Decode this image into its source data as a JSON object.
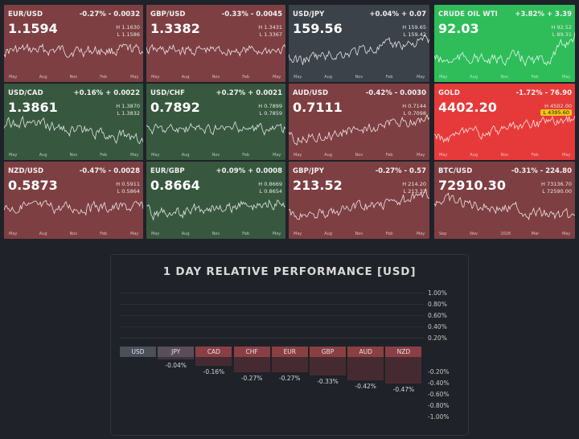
{
  "tiles": [
    {
      "symbol": "EUR/USD",
      "change": "-0.27% - 0.0032",
      "price": "1.1594",
      "high": "H 1.1630",
      "low": "L 1.1586",
      "badge": false,
      "color": "#7e3f42",
      "dir": "flat",
      "axis": [
        "May",
        "Aug",
        "Nov",
        "Feb",
        "May"
      ]
    },
    {
      "symbol": "GBP/USD",
      "change": "-0.33% - 0.0045",
      "price": "1.3382",
      "high": "H 1.3431",
      "low": "L 1.3367",
      "badge": false,
      "color": "#7e3f42",
      "dir": "flat",
      "axis": [
        "May",
        "Aug",
        "Nov",
        "Feb",
        "May"
      ]
    },
    {
      "symbol": "USD/JPY",
      "change": "+0.04% + 0.07",
      "price": "159.56",
      "high": "H 159.65",
      "low": "L 159.42",
      "badge": false,
      "color": "#3c4249",
      "dir": "up",
      "axis": [
        "May",
        "Aug",
        "Nov",
        "Feb",
        "May"
      ]
    },
    {
      "symbol": "CRUDE OIL WTI",
      "change": "+3.82% + 3.39",
      "price": "92.03",
      "high": "H 92.52",
      "low": "L 89.31",
      "badge": false,
      "color": "#2fbd5a",
      "dir": "upend",
      "axis": [
        "May",
        "Aug",
        "Nov",
        "Feb",
        "May"
      ]
    },
    {
      "symbol": "USD/CAD",
      "change": "+0.16% + 0.0022",
      "price": "1.3861",
      "high": "H 1.3870",
      "low": "L 1.3832",
      "badge": false,
      "color": "#37583f",
      "dir": "down",
      "axis": [
        "May",
        "Aug",
        "Nov",
        "Feb",
        "May"
      ]
    },
    {
      "symbol": "USD/CHF",
      "change": "+0.27% + 0.0021",
      "price": "0.7892",
      "high": "H 0.7899",
      "low": "L 0.7859",
      "badge": false,
      "color": "#37583f",
      "dir": "flat",
      "axis": [
        "May",
        "Aug",
        "Nov",
        "Feb",
        "May"
      ]
    },
    {
      "symbol": "AUD/USD",
      "change": "-0.42% - 0.0030",
      "price": "0.7111",
      "high": "H 0.7144",
      "low": "L 0.7098",
      "badge": false,
      "color": "#7e3f42",
      "dir": "up",
      "axis": [
        "May",
        "Aug",
        "Nov",
        "Feb",
        "May"
      ]
    },
    {
      "symbol": "GOLD",
      "change": "-1.72% - 76.90",
      "price": "4402.20",
      "high": "H 4502.00",
      "low": "L 4395.60",
      "badge": true,
      "color": "#e63a3a",
      "dir": "up",
      "axis": [
        "May",
        "Aug",
        "Nov",
        "Feb",
        "May"
      ]
    },
    {
      "symbol": "NZD/USD",
      "change": "-0.47% - 0.0028",
      "price": "0.5873",
      "high": "H 0.5911",
      "low": "L 0.5864",
      "badge": false,
      "color": "#7e3f42",
      "dir": "flat",
      "axis": [
        "May",
        "Aug",
        "Nov",
        "Feb",
        "May"
      ]
    },
    {
      "symbol": "EUR/GBP",
      "change": "+0.09% + 0.0008",
      "price": "0.8664",
      "high": "H 0.8669",
      "low": "L 0.8654",
      "badge": false,
      "color": "#37583f",
      "dir": "upslow",
      "axis": [
        "May",
        "Aug",
        "Nov",
        "Feb",
        "May"
      ]
    },
    {
      "symbol": "GBP/JPY",
      "change": "-0.27% - 0.57",
      "price": "213.52",
      "high": "H 214.20",
      "low": "L 213.32",
      "badge": false,
      "color": "#7e3f42",
      "dir": "up",
      "axis": [
        "May",
        "Aug",
        "Nov",
        "Feb",
        "May"
      ]
    },
    {
      "symbol": "BTC/USD",
      "change": "-0.31% - 224.80",
      "price": "72910.30",
      "high": "H 73136.70",
      "low": "L 72590.00",
      "badge": false,
      "color": "#7e3f42",
      "dir": "down",
      "axis": [
        "Sep",
        "Nov",
        "2026",
        "Mar",
        "May"
      ]
    }
  ],
  "performance": {
    "title": "1 DAY RELATIVE PERFORMANCE  [USD]",
    "y_labels_pos": [
      "1.00%",
      "0.80%",
      "0.60%",
      "0.40%",
      "0.20%"
    ],
    "y_labels_neg": [
      "-0.20%",
      "-0.40%",
      "-0.60%",
      "-0.80%",
      "-1.00%"
    ],
    "currencies": [
      "USD",
      "JPY",
      "CAD",
      "CHF",
      "EUR",
      "GBP",
      "AUD",
      "NZD"
    ],
    "values": [
      0,
      -0.04,
      -0.16,
      -0.27,
      -0.27,
      -0.33,
      -0.42,
      -0.47
    ],
    "value_labels": [
      "",
      "-0.04%",
      "-0.16%",
      "-0.27%",
      "-0.27%",
      "-0.33%",
      "-0.42%",
      "-0.47%"
    ]
  }
}
